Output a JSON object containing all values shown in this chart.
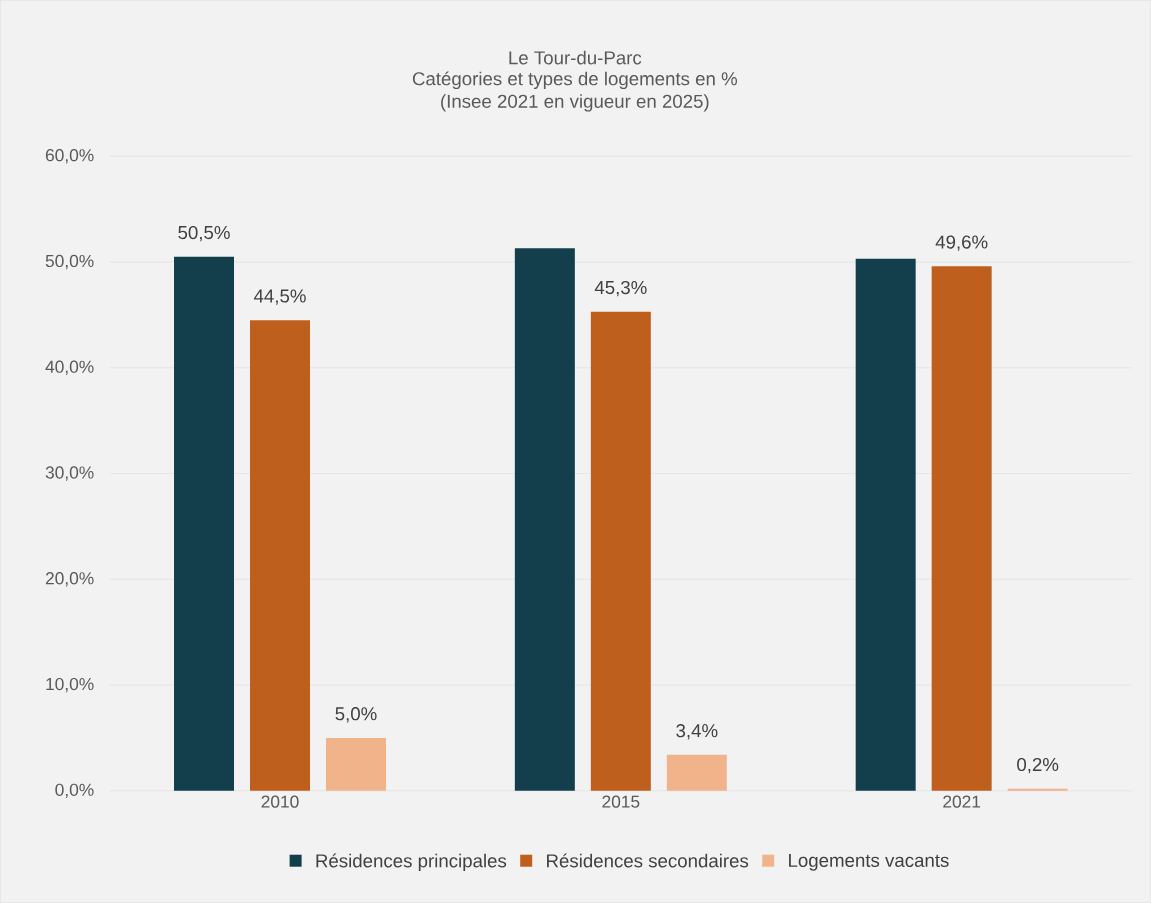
{
  "chart_data": {
    "type": "bar",
    "title": "Le Tour-du-Parc",
    "subtitle": "Catégories et types de logements en %",
    "annotations": [
      "(Insee 2021 en vigueur en 2025)"
    ],
    "categories": [
      "2010",
      "2015",
      "2021"
    ],
    "series": [
      {
        "name": "Résidences principales",
        "color": "#133f4d",
        "values": [
          50.5,
          51.3,
          50.3
        ],
        "value_labels": [
          "50,5%",
          null,
          null
        ]
      },
      {
        "name": "Résidences secondaires",
        "color": "#bf5f1e",
        "values": [
          44.5,
          45.3,
          49.6
        ],
        "value_labels": [
          "44,5%",
          "45,3%",
          "49,6%"
        ]
      },
      {
        "name": "Logements vacants",
        "color": "#f0b38a",
        "values": [
          5.0,
          3.4,
          0.2
        ],
        "value_labels": [
          "5,0%",
          "3,4%",
          "0,2%"
        ]
      }
    ],
    "ylim": [
      0,
      60
    ],
    "yticks": [
      {
        "value": 0,
        "label": "0,0%"
      },
      {
        "value": 10,
        "label": "10,0%"
      },
      {
        "value": 20,
        "label": "20,0%"
      },
      {
        "value": 30,
        "label": "30,0%"
      },
      {
        "value": 40,
        "label": "40,0%"
      },
      {
        "value": 50,
        "label": "50,0%"
      },
      {
        "value": 60,
        "label": "60,0%"
      }
    ],
    "grid": "y",
    "legend": "bottom"
  }
}
